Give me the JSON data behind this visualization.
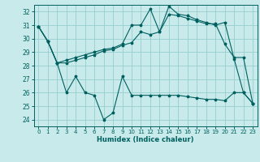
{
  "xlabel": "Humidex (Indice chaleur)",
  "bg_color": "#c8eaea",
  "grid_color": "#98cece",
  "line_color": "#006060",
  "xlim": [
    -0.5,
    23.5
  ],
  "ylim": [
    23.5,
    32.5
  ],
  "yticks": [
    24,
    25,
    26,
    27,
    28,
    29,
    30,
    31,
    32
  ],
  "xticks": [
    0,
    1,
    2,
    3,
    4,
    5,
    6,
    7,
    8,
    9,
    10,
    11,
    12,
    13,
    14,
    15,
    16,
    17,
    18,
    19,
    20,
    21,
    22,
    23
  ],
  "series": [
    [
      30.9,
      29.8,
      28.2,
      28.2,
      28.4,
      28.6,
      28.8,
      29.1,
      29.2,
      29.5,
      29.7,
      30.5,
      30.3,
      30.5,
      31.8,
      31.7,
      31.5,
      31.3,
      31.1,
      31.1,
      29.6,
      28.6,
      28.6,
      25.2
    ],
    [
      30.9,
      29.8,
      28.2,
      28.4,
      28.6,
      28.8,
      29.0,
      29.2,
      29.3,
      29.6,
      31.0,
      31.0,
      32.2,
      30.5,
      32.4,
      31.8,
      31.7,
      31.4,
      31.2,
      31.0,
      31.2,
      28.5,
      26.0,
      25.2
    ],
    [
      30.9,
      29.8,
      28.2,
      26.0,
      27.2,
      26.0,
      25.8,
      24.0,
      24.5,
      27.2,
      25.8,
      25.8,
      25.8,
      25.8,
      25.8,
      25.8,
      25.7,
      25.6,
      25.5,
      25.5,
      25.4,
      26.0,
      26.0,
      25.2
    ]
  ]
}
